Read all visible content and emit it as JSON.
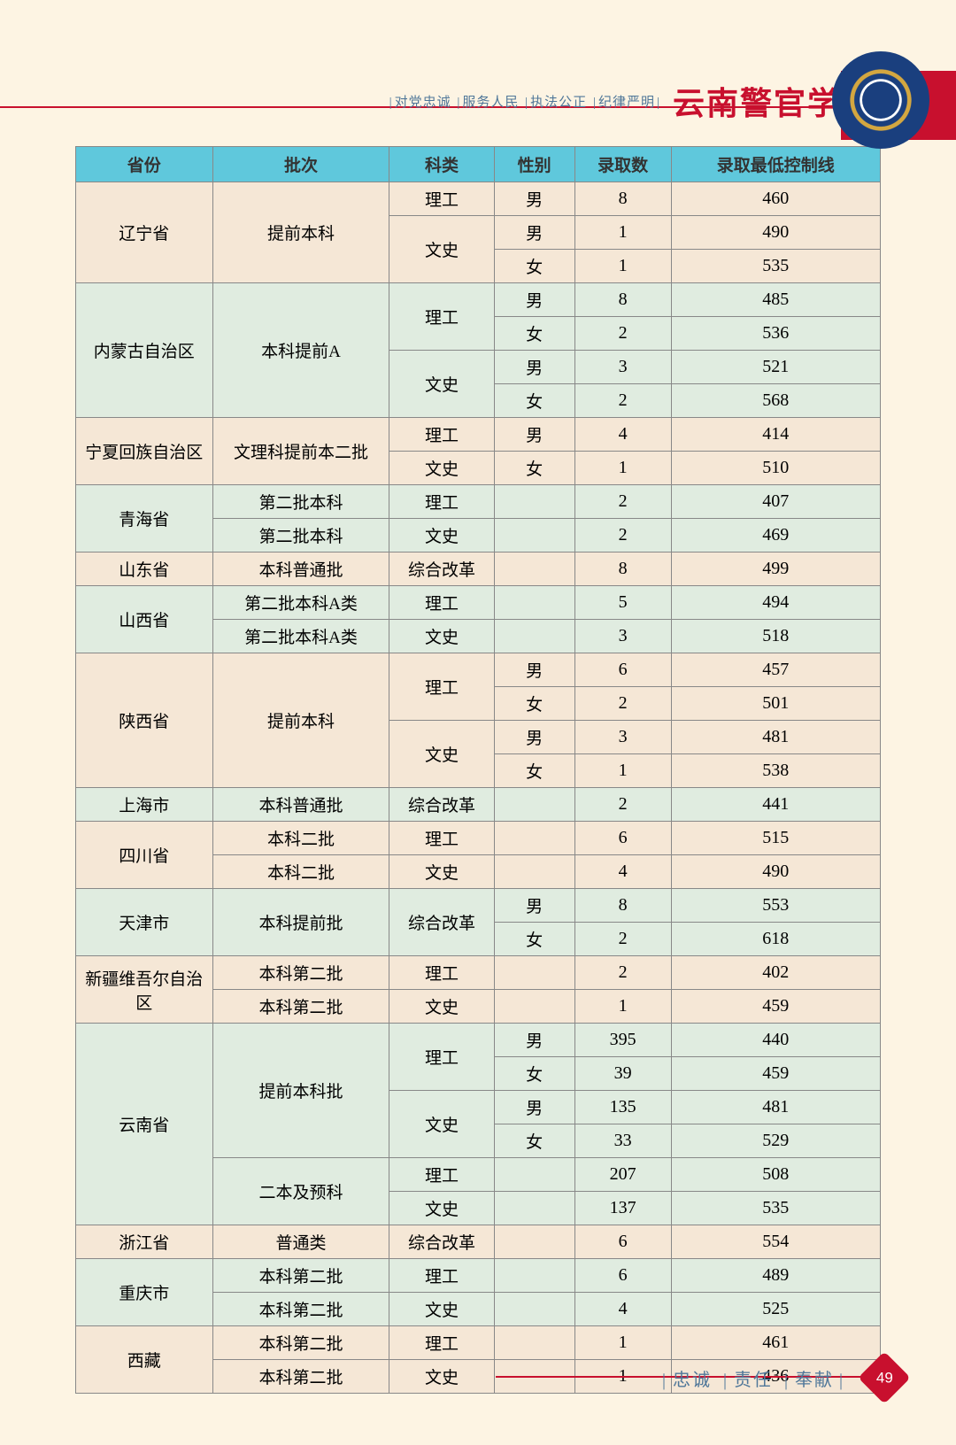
{
  "header": {
    "motto": [
      "对党忠诚",
      "服务人民",
      "执法公正",
      "纪律严明"
    ],
    "school_name": "云南警官学院"
  },
  "table": {
    "headers": [
      "省份",
      "批次",
      "科类",
      "性别",
      "录取数",
      "录取最低控制线"
    ],
    "col_widths": [
      "17%",
      "22%",
      "13%",
      "10%",
      "12%",
      "26%"
    ],
    "groups": [
      {
        "province": "辽宁省",
        "color": "c0",
        "batches": [
          {
            "name": "提前本科",
            "subjects": [
              {
                "name": "理工",
                "rows": [
                  {
                    "gender": "男",
                    "count": "8",
                    "score": "460"
                  }
                ]
              },
              {
                "name": "文史",
                "rows": [
                  {
                    "gender": "男",
                    "count": "1",
                    "score": "490"
                  },
                  {
                    "gender": "女",
                    "count": "1",
                    "score": "535"
                  }
                ]
              }
            ]
          }
        ]
      },
      {
        "province": "内蒙古自治区",
        "color": "c1",
        "batches": [
          {
            "name": "本科提前A",
            "subjects": [
              {
                "name": "理工",
                "rows": [
                  {
                    "gender": "男",
                    "count": "8",
                    "score": "485"
                  },
                  {
                    "gender": "女",
                    "count": "2",
                    "score": "536"
                  }
                ]
              },
              {
                "name": "文史",
                "rows": [
                  {
                    "gender": "男",
                    "count": "3",
                    "score": "521"
                  },
                  {
                    "gender": "女",
                    "count": "2",
                    "score": "568"
                  }
                ]
              }
            ]
          }
        ]
      },
      {
        "province": "宁夏回族自治区",
        "color": "c0",
        "batches": [
          {
            "name": "文理科提前本二批",
            "subjects": [
              {
                "name": "理工",
                "rows": [
                  {
                    "gender": "男",
                    "count": "4",
                    "score": "414"
                  }
                ]
              },
              {
                "name": "文史",
                "rows": [
                  {
                    "gender": "女",
                    "count": "1",
                    "score": "510"
                  }
                ]
              }
            ]
          }
        ]
      },
      {
        "province": "青海省",
        "color": "c1",
        "batches": [
          {
            "name": "第二批本科",
            "subjects": [
              {
                "name": "理工",
                "rows": [
                  {
                    "gender": "",
                    "count": "2",
                    "score": "407"
                  }
                ]
              }
            ]
          },
          {
            "name": "第二批本科",
            "subjects": [
              {
                "name": "文史",
                "rows": [
                  {
                    "gender": "",
                    "count": "2",
                    "score": "469"
                  }
                ]
              }
            ]
          }
        ]
      },
      {
        "province": "山东省",
        "color": "c0",
        "batches": [
          {
            "name": "本科普通批",
            "subjects": [
              {
                "name": "综合改革",
                "rows": [
                  {
                    "gender": "",
                    "count": "8",
                    "score": "499"
                  }
                ]
              }
            ]
          }
        ]
      },
      {
        "province": "山西省",
        "color": "c1",
        "batches": [
          {
            "name": "第二批本科A类",
            "subjects": [
              {
                "name": "理工",
                "rows": [
                  {
                    "gender": "",
                    "count": "5",
                    "score": "494"
                  }
                ]
              }
            ]
          },
          {
            "name": "第二批本科A类",
            "subjects": [
              {
                "name": "文史",
                "rows": [
                  {
                    "gender": "",
                    "count": "3",
                    "score": "518"
                  }
                ]
              }
            ]
          }
        ]
      },
      {
        "province": "陕西省",
        "color": "c0",
        "batches": [
          {
            "name": "提前本科",
            "subjects": [
              {
                "name": "理工",
                "rows": [
                  {
                    "gender": "男",
                    "count": "6",
                    "score": "457"
                  },
                  {
                    "gender": "女",
                    "count": "2",
                    "score": "501"
                  }
                ]
              },
              {
                "name": "文史",
                "rows": [
                  {
                    "gender": "男",
                    "count": "3",
                    "score": "481"
                  },
                  {
                    "gender": "女",
                    "count": "1",
                    "score": "538"
                  }
                ]
              }
            ]
          }
        ]
      },
      {
        "province": "上海市",
        "color": "c1",
        "batches": [
          {
            "name": "本科普通批",
            "subjects": [
              {
                "name": "综合改革",
                "rows": [
                  {
                    "gender": "",
                    "count": "2",
                    "score": "441"
                  }
                ]
              }
            ]
          }
        ]
      },
      {
        "province": "四川省",
        "color": "c0",
        "batches": [
          {
            "name": "本科二批",
            "subjects": [
              {
                "name": "理工",
                "rows": [
                  {
                    "gender": "",
                    "count": "6",
                    "score": "515"
                  }
                ]
              }
            ]
          },
          {
            "name": "本科二批",
            "subjects": [
              {
                "name": "文史",
                "rows": [
                  {
                    "gender": "",
                    "count": "4",
                    "score": "490"
                  }
                ]
              }
            ]
          }
        ]
      },
      {
        "province": "天津市",
        "color": "c1",
        "batches": [
          {
            "name": "本科提前批",
            "subjects": [
              {
                "name": "综合改革",
                "rows": [
                  {
                    "gender": "男",
                    "count": "8",
                    "score": "553"
                  },
                  {
                    "gender": "女",
                    "count": "2",
                    "score": "618"
                  }
                ]
              }
            ]
          }
        ]
      },
      {
        "province": "新疆维吾尔自治区",
        "color": "c0",
        "batches": [
          {
            "name": "本科第二批",
            "subjects": [
              {
                "name": "理工",
                "rows": [
                  {
                    "gender": "",
                    "count": "2",
                    "score": "402"
                  }
                ]
              }
            ]
          },
          {
            "name": "本科第二批",
            "subjects": [
              {
                "name": "文史",
                "rows": [
                  {
                    "gender": "",
                    "count": "1",
                    "score": "459"
                  }
                ]
              }
            ]
          }
        ]
      },
      {
        "province": "云南省",
        "color": "c1",
        "batches": [
          {
            "name": "提前本科批",
            "subjects": [
              {
                "name": "理工",
                "rows": [
                  {
                    "gender": "男",
                    "count": "395",
                    "score": "440"
                  },
                  {
                    "gender": "女",
                    "count": "39",
                    "score": "459"
                  }
                ]
              },
              {
                "name": "文史",
                "rows": [
                  {
                    "gender": "男",
                    "count": "135",
                    "score": "481"
                  },
                  {
                    "gender": "女",
                    "count": "33",
                    "score": "529"
                  }
                ]
              }
            ]
          },
          {
            "name": "二本及预科",
            "subjects": [
              {
                "name": "理工",
                "rows": [
                  {
                    "gender": "",
                    "count": "207",
                    "score": "508"
                  }
                ]
              },
              {
                "name": "文史",
                "rows": [
                  {
                    "gender": "",
                    "count": "137",
                    "score": "535"
                  }
                ]
              }
            ]
          }
        ]
      },
      {
        "province": "浙江省",
        "color": "c0",
        "batches": [
          {
            "name": "普通类",
            "subjects": [
              {
                "name": "综合改革",
                "rows": [
                  {
                    "gender": "",
                    "count": "6",
                    "score": "554"
                  }
                ]
              }
            ]
          }
        ]
      },
      {
        "province": "重庆市",
        "color": "c1",
        "batches": [
          {
            "name": "本科第二批",
            "subjects": [
              {
                "name": "理工",
                "rows": [
                  {
                    "gender": "",
                    "count": "6",
                    "score": "489"
                  }
                ]
              }
            ]
          },
          {
            "name": "本科第二批",
            "subjects": [
              {
                "name": "文史",
                "rows": [
                  {
                    "gender": "",
                    "count": "4",
                    "score": "525"
                  }
                ]
              }
            ]
          }
        ]
      },
      {
        "province": "西藏",
        "color": "c0",
        "batches": [
          {
            "name": "本科第二批",
            "subjects": [
              {
                "name": "理工",
                "rows": [
                  {
                    "gender": "",
                    "count": "1",
                    "score": "461"
                  }
                ]
              }
            ]
          },
          {
            "name": "本科第二批",
            "subjects": [
              {
                "name": "文史",
                "rows": [
                  {
                    "gender": "",
                    "count": "1",
                    "score": "436"
                  }
                ]
              }
            ]
          }
        ]
      }
    ]
  },
  "footer": {
    "values": [
      "忠诚",
      "责任",
      "奉献"
    ],
    "page": "49"
  }
}
